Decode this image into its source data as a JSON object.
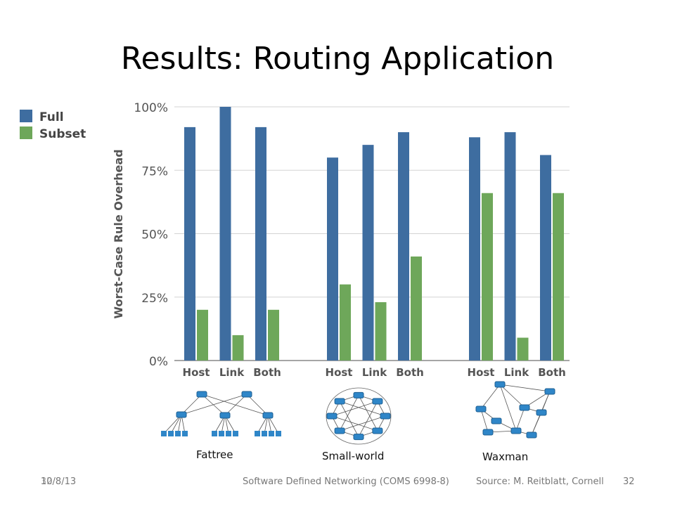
{
  "slide": {
    "title": "Results: Routing Application",
    "footer_date": "10/8/13",
    "footer_date_overlap": "32",
    "footer_course": "Software Defined Networking (COMS 6998-8)",
    "footer_source": "Source: M. Reitblatt, Cornell",
    "page_number": "32"
  },
  "colors": {
    "full": "#3e6da0",
    "subset": "#6ea75a",
    "grid": "#d3d3d3",
    "axis_text": "#555555"
  },
  "chart_data": {
    "type": "bar",
    "ylabel": "Worst-Case Rule Overhead",
    "ylim": [
      0,
      100
    ],
    "yticks": [
      "0%",
      "25%",
      "50%",
      "75%",
      "100%"
    ],
    "ytick_values": [
      0,
      25,
      50,
      75,
      100
    ],
    "legend": {
      "position": "top-left",
      "entries": [
        "Full",
        "Subset"
      ]
    },
    "groups": [
      {
        "name": "Fattree",
        "categories": [
          "Host",
          "Link",
          "Both"
        ],
        "series": [
          {
            "name": "Full",
            "values": [
              92,
              100,
              92
            ]
          },
          {
            "name": "Subset",
            "values": [
              20,
              10,
              20
            ]
          }
        ]
      },
      {
        "name": "Small-world",
        "categories": [
          "Host",
          "Link",
          "Both"
        ],
        "series": [
          {
            "name": "Full",
            "values": [
              80,
              85,
              90
            ]
          },
          {
            "name": "Subset",
            "values": [
              30,
              23,
              41
            ]
          }
        ]
      },
      {
        "name": "Waxman",
        "categories": [
          "Host",
          "Link",
          "Both"
        ],
        "series": [
          {
            "name": "Full",
            "values": [
              88,
              90,
              81
            ]
          },
          {
            "name": "Subset",
            "values": [
              66,
              9,
              66
            ]
          }
        ]
      }
    ],
    "grid": true
  }
}
